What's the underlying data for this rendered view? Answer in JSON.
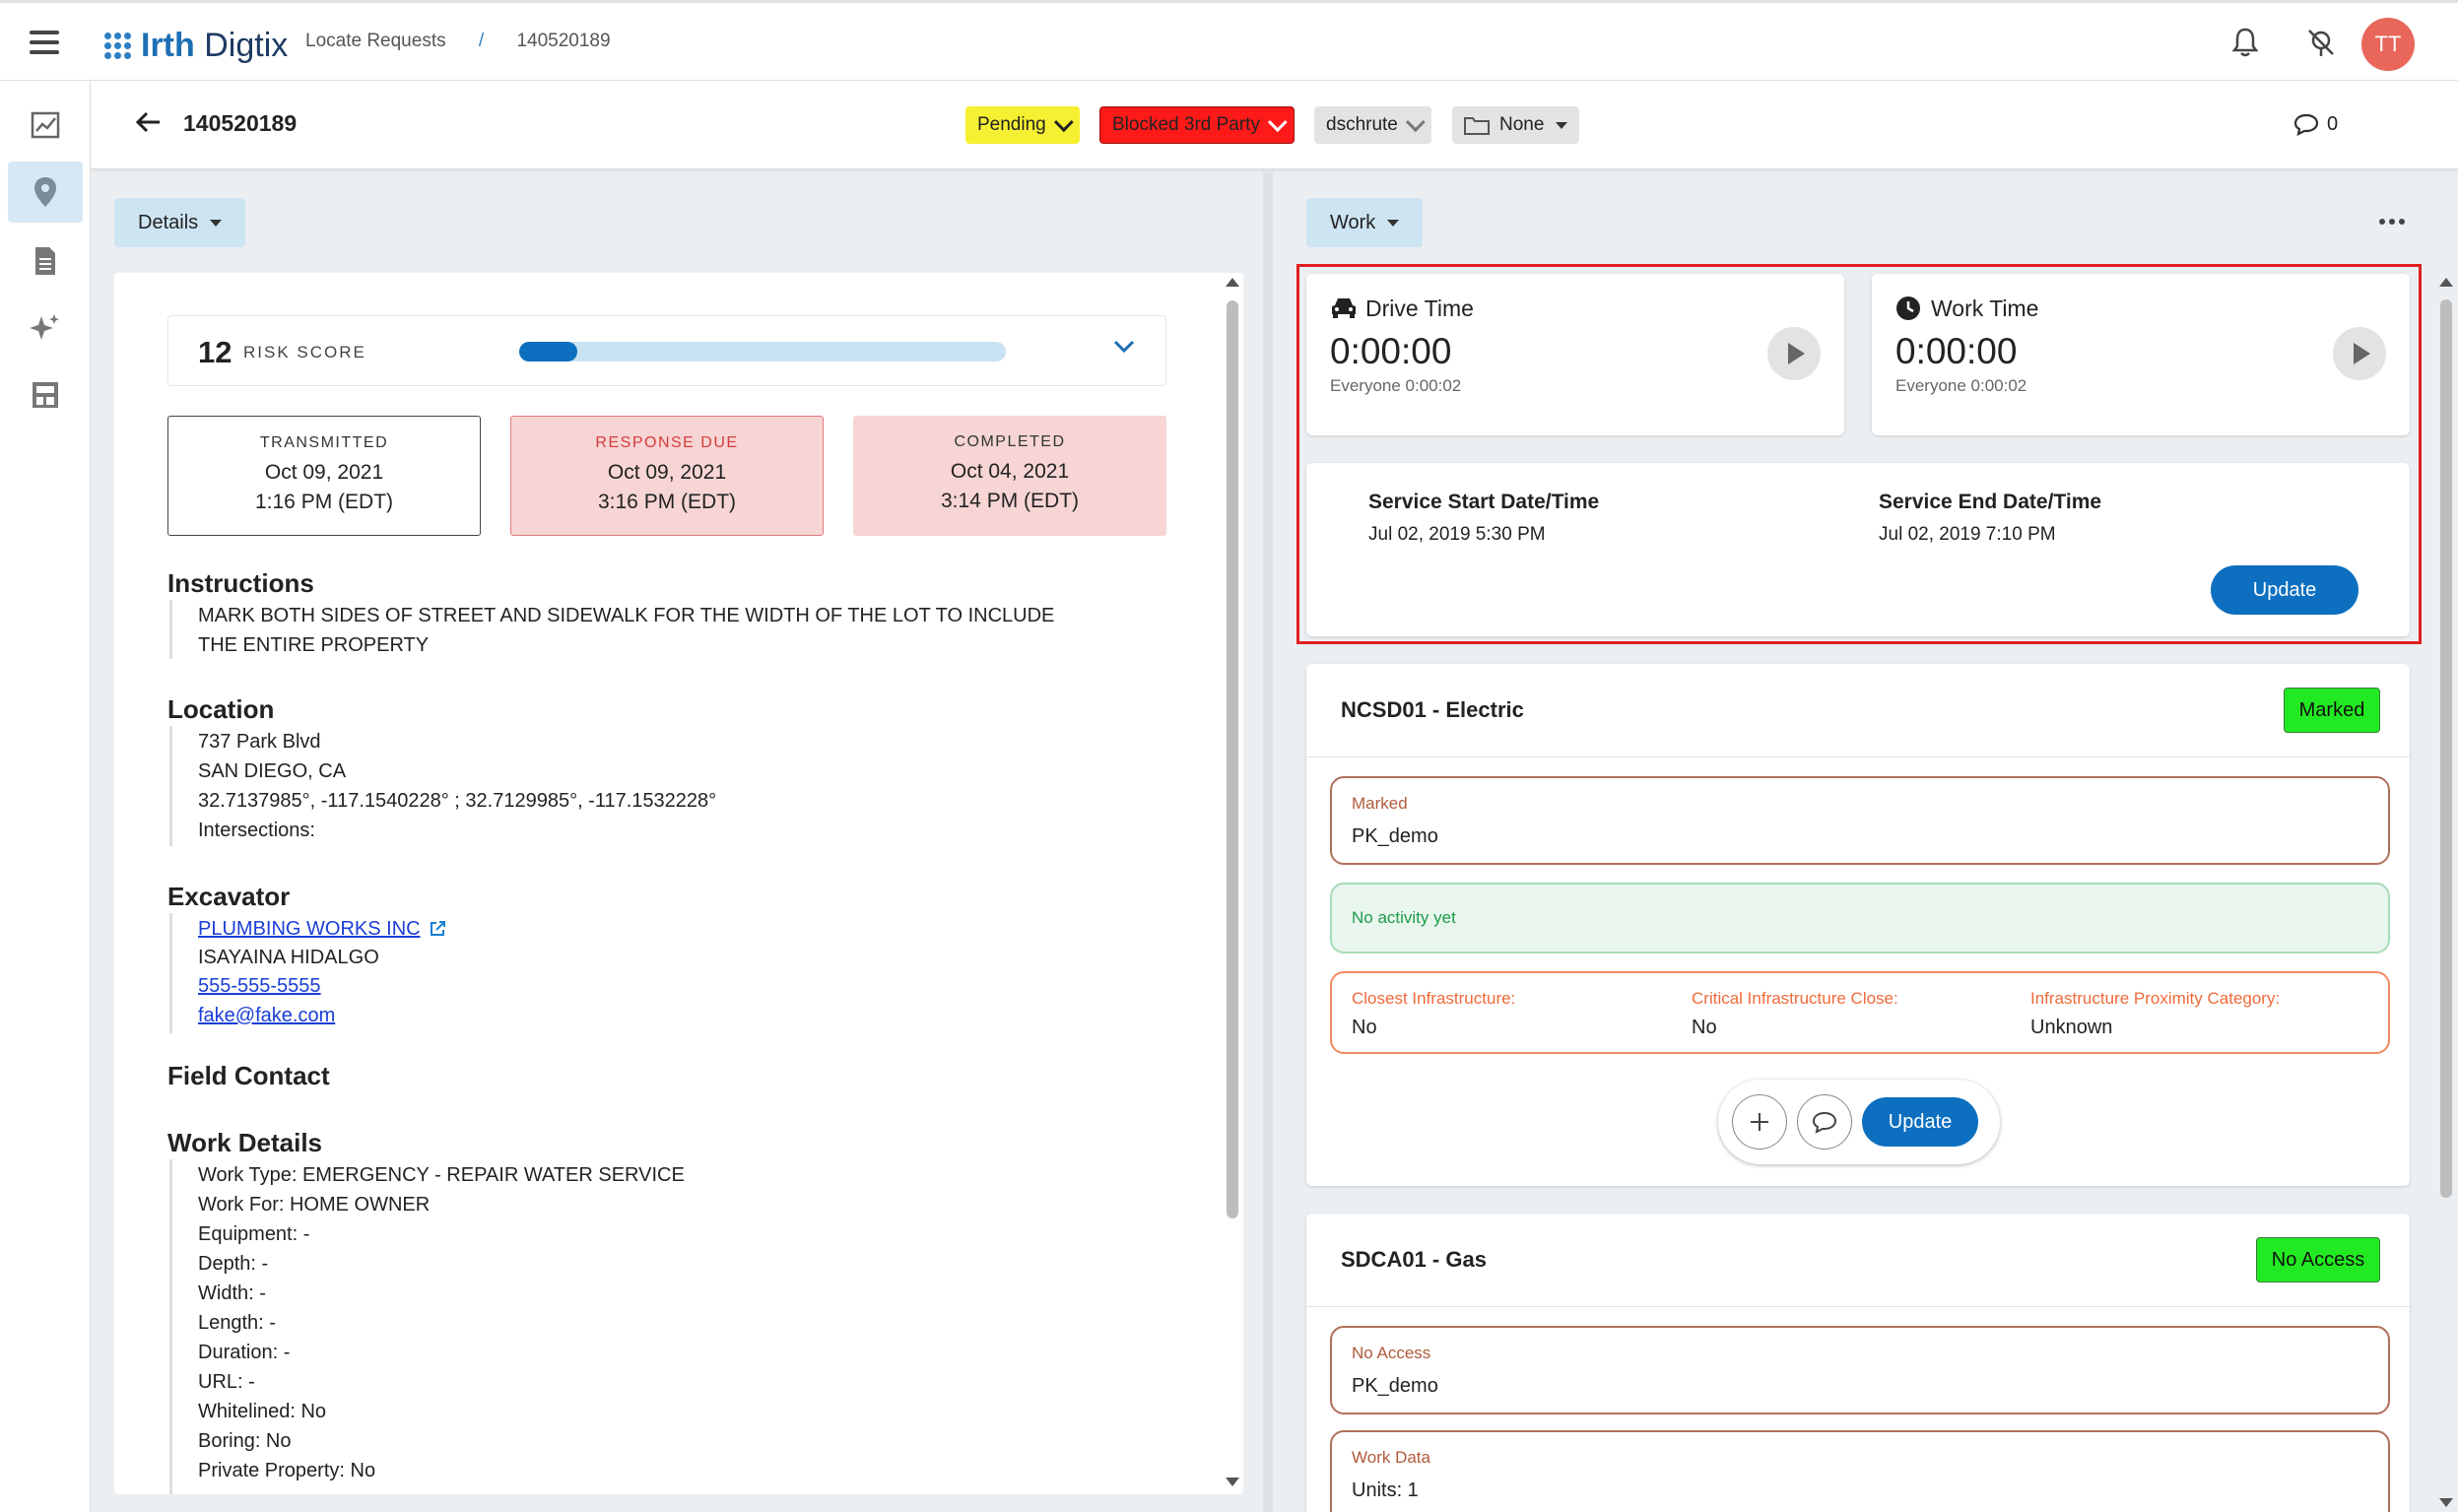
{
  "header": {
    "logo_brand": "Irth",
    "logo_product": "Digtix",
    "breadcrumb_parent": "Locate Requests",
    "breadcrumb_sep": "/",
    "breadcrumb_current": "140520189",
    "avatar_initials": "TT"
  },
  "sidebar": {
    "items": [
      {
        "icon": "chart-icon"
      },
      {
        "icon": "location-pin-icon",
        "active": true
      },
      {
        "icon": "document-icon"
      },
      {
        "icon": "sparkle-icon"
      },
      {
        "icon": "layout-icon"
      }
    ]
  },
  "ticket_bar": {
    "ticket_number": "140520189",
    "status": "Pending",
    "status_color": "#f6f032",
    "blocker": "Blocked 3rd Party",
    "blocker_color": "#ff1a1a",
    "assignee": "dschrute",
    "folder": "None",
    "comment_count": "0"
  },
  "left_panel": {
    "tab_label": "Details",
    "risk": {
      "score": "12",
      "label": "RISK SCORE",
      "fraction": 0.12
    },
    "dates": [
      {
        "label": "TRANSMITTED",
        "date": "Oct 09, 2021",
        "time": "1:16 PM (EDT)"
      },
      {
        "label": "RESPONSE DUE",
        "date": "Oct 09, 2021",
        "time": "3:16 PM (EDT)"
      },
      {
        "label": "COMPLETED",
        "date": "Oct 04, 2021",
        "time": "3:14 PM (EDT)"
      }
    ],
    "instructions": {
      "title": "Instructions",
      "lines": [
        "MARK BOTH SIDES OF STREET AND SIDEWALK FOR THE WIDTH OF THE LOT TO INCLUDE",
        "THE ENTIRE PROPERTY"
      ]
    },
    "location": {
      "title": "Location",
      "lines": [
        "737 Park Blvd",
        "SAN DIEGO, CA",
        "32.7137985°, -117.1540228° ; 32.7129985°, -117.1532228°",
        "Intersections:"
      ]
    },
    "excavator": {
      "title": "Excavator",
      "company": "PLUMBING WORKS INC",
      "contact": "ISAYAINA HIDALGO",
      "phone": "555-555-5555",
      "email": "fake@fake.com"
    },
    "field_contact": {
      "title": "Field Contact"
    },
    "work_details": {
      "title": "Work Details",
      "lines": [
        "Work Type: EMERGENCY - REPAIR WATER SERVICE",
        "Work For: HOME OWNER",
        "Equipment: -",
        "Depth: -",
        "Width: -",
        "Length: -",
        "Duration: -",
        "URL: -",
        "Whitelined: No",
        "Boring: No",
        "Private Property: No"
      ]
    }
  },
  "right_panel": {
    "tab_label": "Work",
    "drive_time": {
      "label": "Drive Time",
      "value": "0:00:00",
      "everyone": "Everyone 0:00:02"
    },
    "work_time": {
      "label": "Work Time",
      "value": "0:00:00",
      "everyone": "Everyone 0:00:02"
    },
    "service": {
      "start_label": "Service Start Date/Time",
      "start_value": "Jul 02, 2019 5:30 PM",
      "end_label": "Service End Date/Time",
      "end_value": "Jul 02, 2019 7:10 PM",
      "update_label": "Update"
    },
    "utilities": [
      {
        "name": "NCSD01 - Electric",
        "badge": "Marked",
        "status_label": "Marked",
        "status_value": "PK_demo",
        "activity": "No activity yet",
        "closest_label": "Closest Infrastructure:",
        "closest_value": "No",
        "critical_label": "Critical Infrastructure Close:",
        "critical_value": "No",
        "proximity_label": "Infrastructure Proximity Category:",
        "proximity_value": "Unknown",
        "update_label": "Update"
      },
      {
        "name": "SDCA01 - Gas",
        "badge": "No Access",
        "status_label": "No Access",
        "status_value": "PK_demo",
        "work_data_label": "Work Data",
        "work_data_value": "Units: 1"
      }
    ]
  }
}
